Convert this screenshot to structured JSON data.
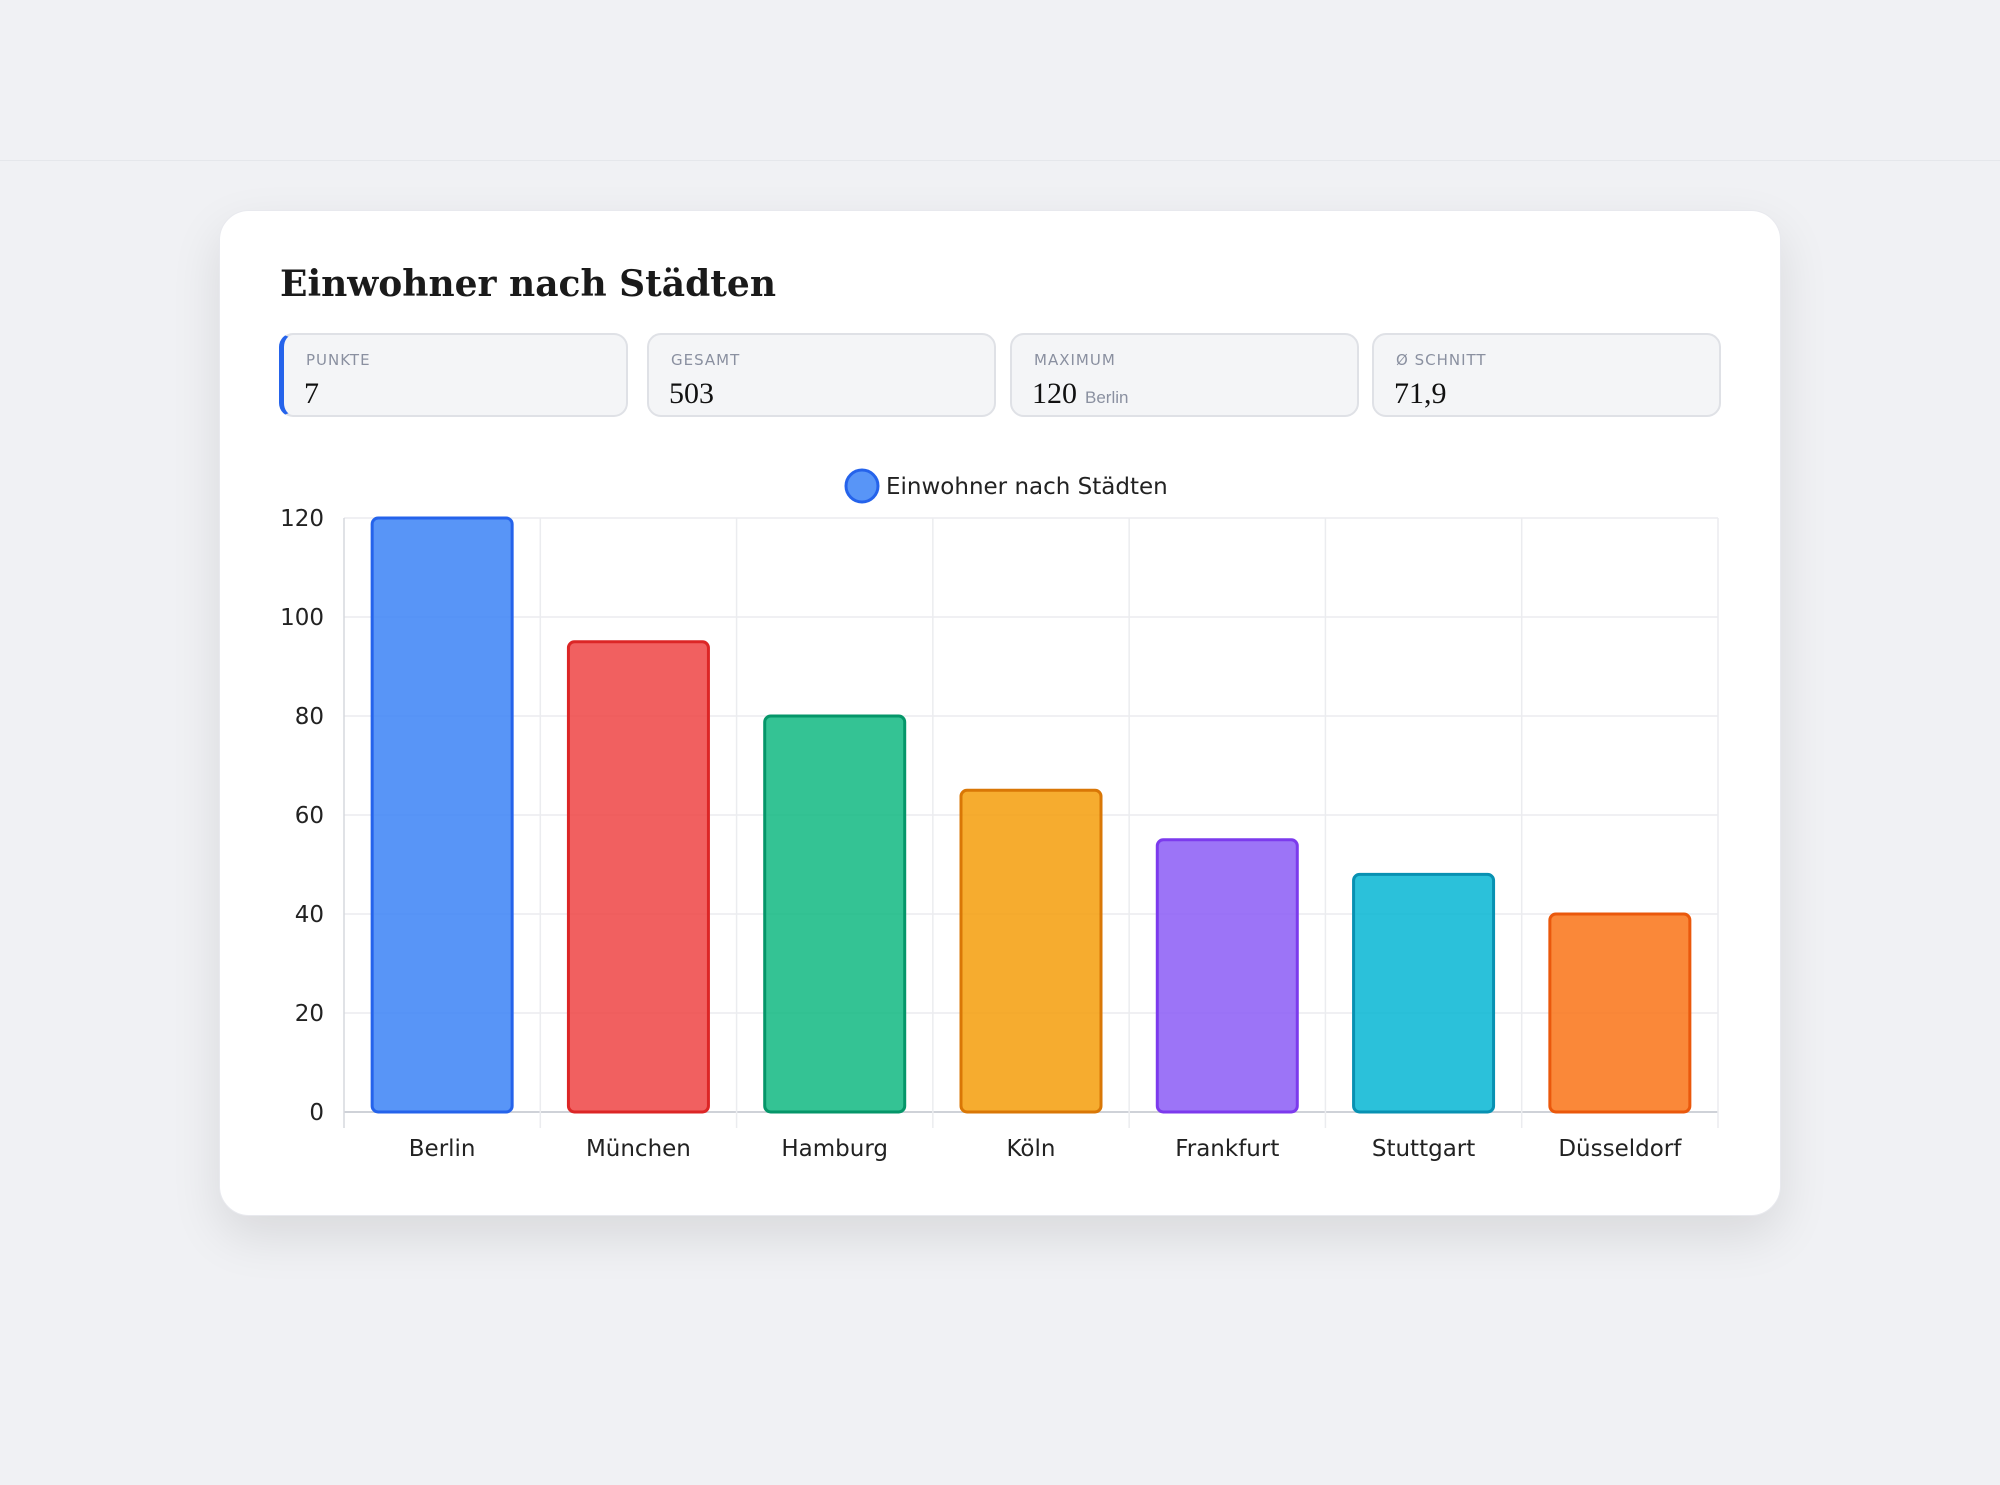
{
  "title": "Einwohner nach Städten",
  "stats": [
    {
      "label": "PUNKTE",
      "value": "7"
    },
    {
      "label": "GESAMT",
      "value": "503"
    },
    {
      "label": "MAXIMUM",
      "value": "120",
      "sub": "Berlin"
    },
    {
      "label": "Ø SCHNITT",
      "value": "71,9"
    }
  ],
  "chart_data": {
    "type": "bar",
    "title": "Einwohner nach Städten",
    "legend": {
      "label": "Einwohner nach Städten",
      "position": "top-center"
    },
    "categories": [
      "Berlin",
      "München",
      "Hamburg",
      "Köln",
      "Frankfurt",
      "Stuttgart",
      "Düsseldorf"
    ],
    "values": [
      120,
      95,
      80,
      65,
      55,
      48,
      40
    ],
    "colors": [
      "#3b82f6",
      "#ef4444",
      "#10b981",
      "#f59e0b",
      "#8b5cf6",
      "#06b6d4",
      "#f97316"
    ],
    "borders": [
      "#2563eb",
      "#dc2626",
      "#059669",
      "#d97706",
      "#7c3aed",
      "#0891b2",
      "#ea580c"
    ],
    "ylim": [
      0,
      120
    ],
    "yticks": [
      0,
      20,
      40,
      60,
      80,
      100,
      120
    ],
    "grid": true,
    "xlabel": "",
    "ylabel": ""
  }
}
